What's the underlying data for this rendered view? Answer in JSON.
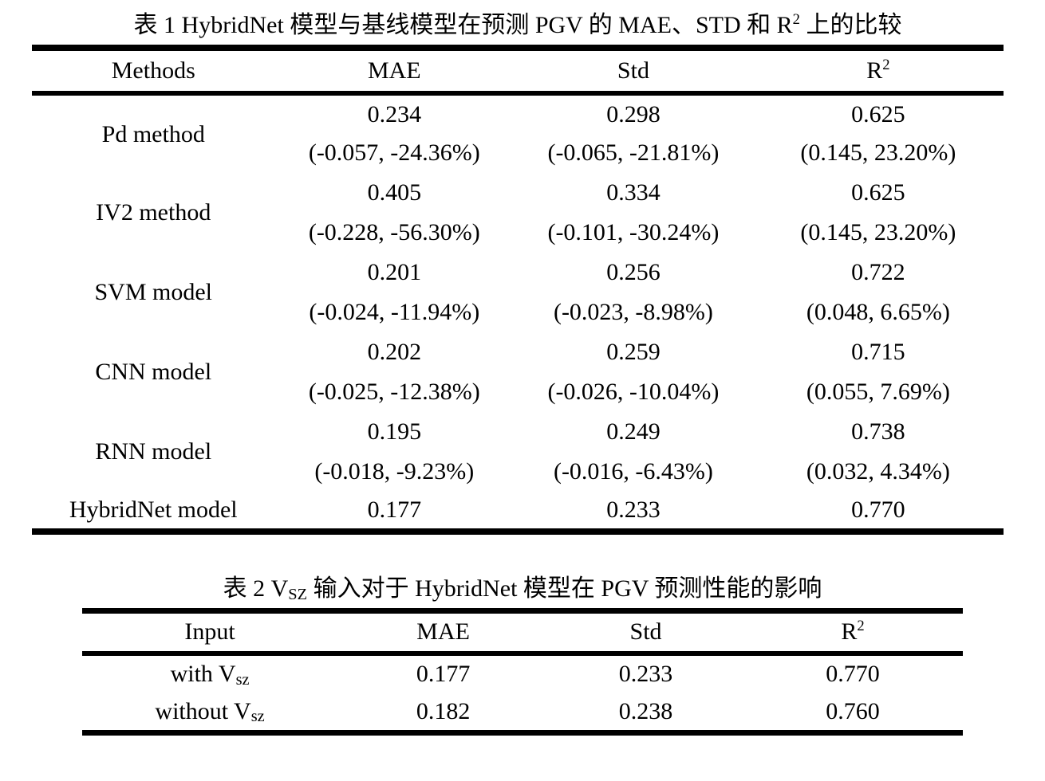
{
  "table1": {
    "title": {
      "prefix": "表 1 HybridNet 模型与基线模型在预测 PGV 的 MAE、STD 和 R",
      "sup": "2",
      "suffix": " 上的比较"
    },
    "headers": {
      "methods": "Methods",
      "mae": "MAE",
      "std": "Std",
      "r2_base": "R",
      "r2_sup": "2"
    },
    "rows": [
      {
        "method": "Pd method",
        "mae": "0.234",
        "mae_delta": "(-0.057, -24.36%)",
        "std": "0.298",
        "std_delta": "(-0.065, -21.81%)",
        "r2": "0.625",
        "r2_delta": "(0.145, 23.20%)"
      },
      {
        "method": "IV2 method",
        "mae": "0.405",
        "mae_delta": "(-0.228, -56.30%)",
        "std": "0.334",
        "std_delta": "(-0.101, -30.24%)",
        "r2": "0.625",
        "r2_delta": "(0.145, 23.20%)"
      },
      {
        "method": "SVM model",
        "mae": "0.201",
        "mae_delta": "(-0.024, -11.94%)",
        "std": "0.256",
        "std_delta": "(-0.023, -8.98%)",
        "r2": "0.722",
        "r2_delta": "(0.048, 6.65%)"
      },
      {
        "method": "CNN model",
        "mae": "0.202",
        "mae_delta": "(-0.025, -12.38%)",
        "std": "0.259",
        "std_delta": "(-0.026, -10.04%)",
        "r2": "0.715",
        "r2_delta": "(0.055, 7.69%)"
      },
      {
        "method": "RNN model",
        "mae": "0.195",
        "mae_delta": "(-0.018, -9.23%)",
        "std": "0.249",
        "std_delta": "(-0.016, -6.43%)",
        "r2": "0.738",
        "r2_delta": "(0.032, 4.34%)"
      },
      {
        "method": "HybridNet model",
        "mae": "0.177",
        "std": "0.233",
        "r2": "0.770"
      }
    ]
  },
  "table2": {
    "title": {
      "prefix": "表 2 V",
      "sub": "SZ",
      "suffix": " 输入对于 HybridNet 模型在 PGV 预测性能的影响"
    },
    "headers": {
      "input": "Input",
      "mae": "MAE",
      "std": "Std",
      "r2_base": "R",
      "r2_sup": "2"
    },
    "rows": [
      {
        "input_prefix": "with V",
        "input_sub": "sz",
        "mae": "0.177",
        "std": "0.233",
        "r2": "0.770"
      },
      {
        "input_prefix": "without V",
        "input_sub": "sz",
        "mae": "0.182",
        "std": "0.238",
        "r2": "0.760"
      }
    ]
  }
}
